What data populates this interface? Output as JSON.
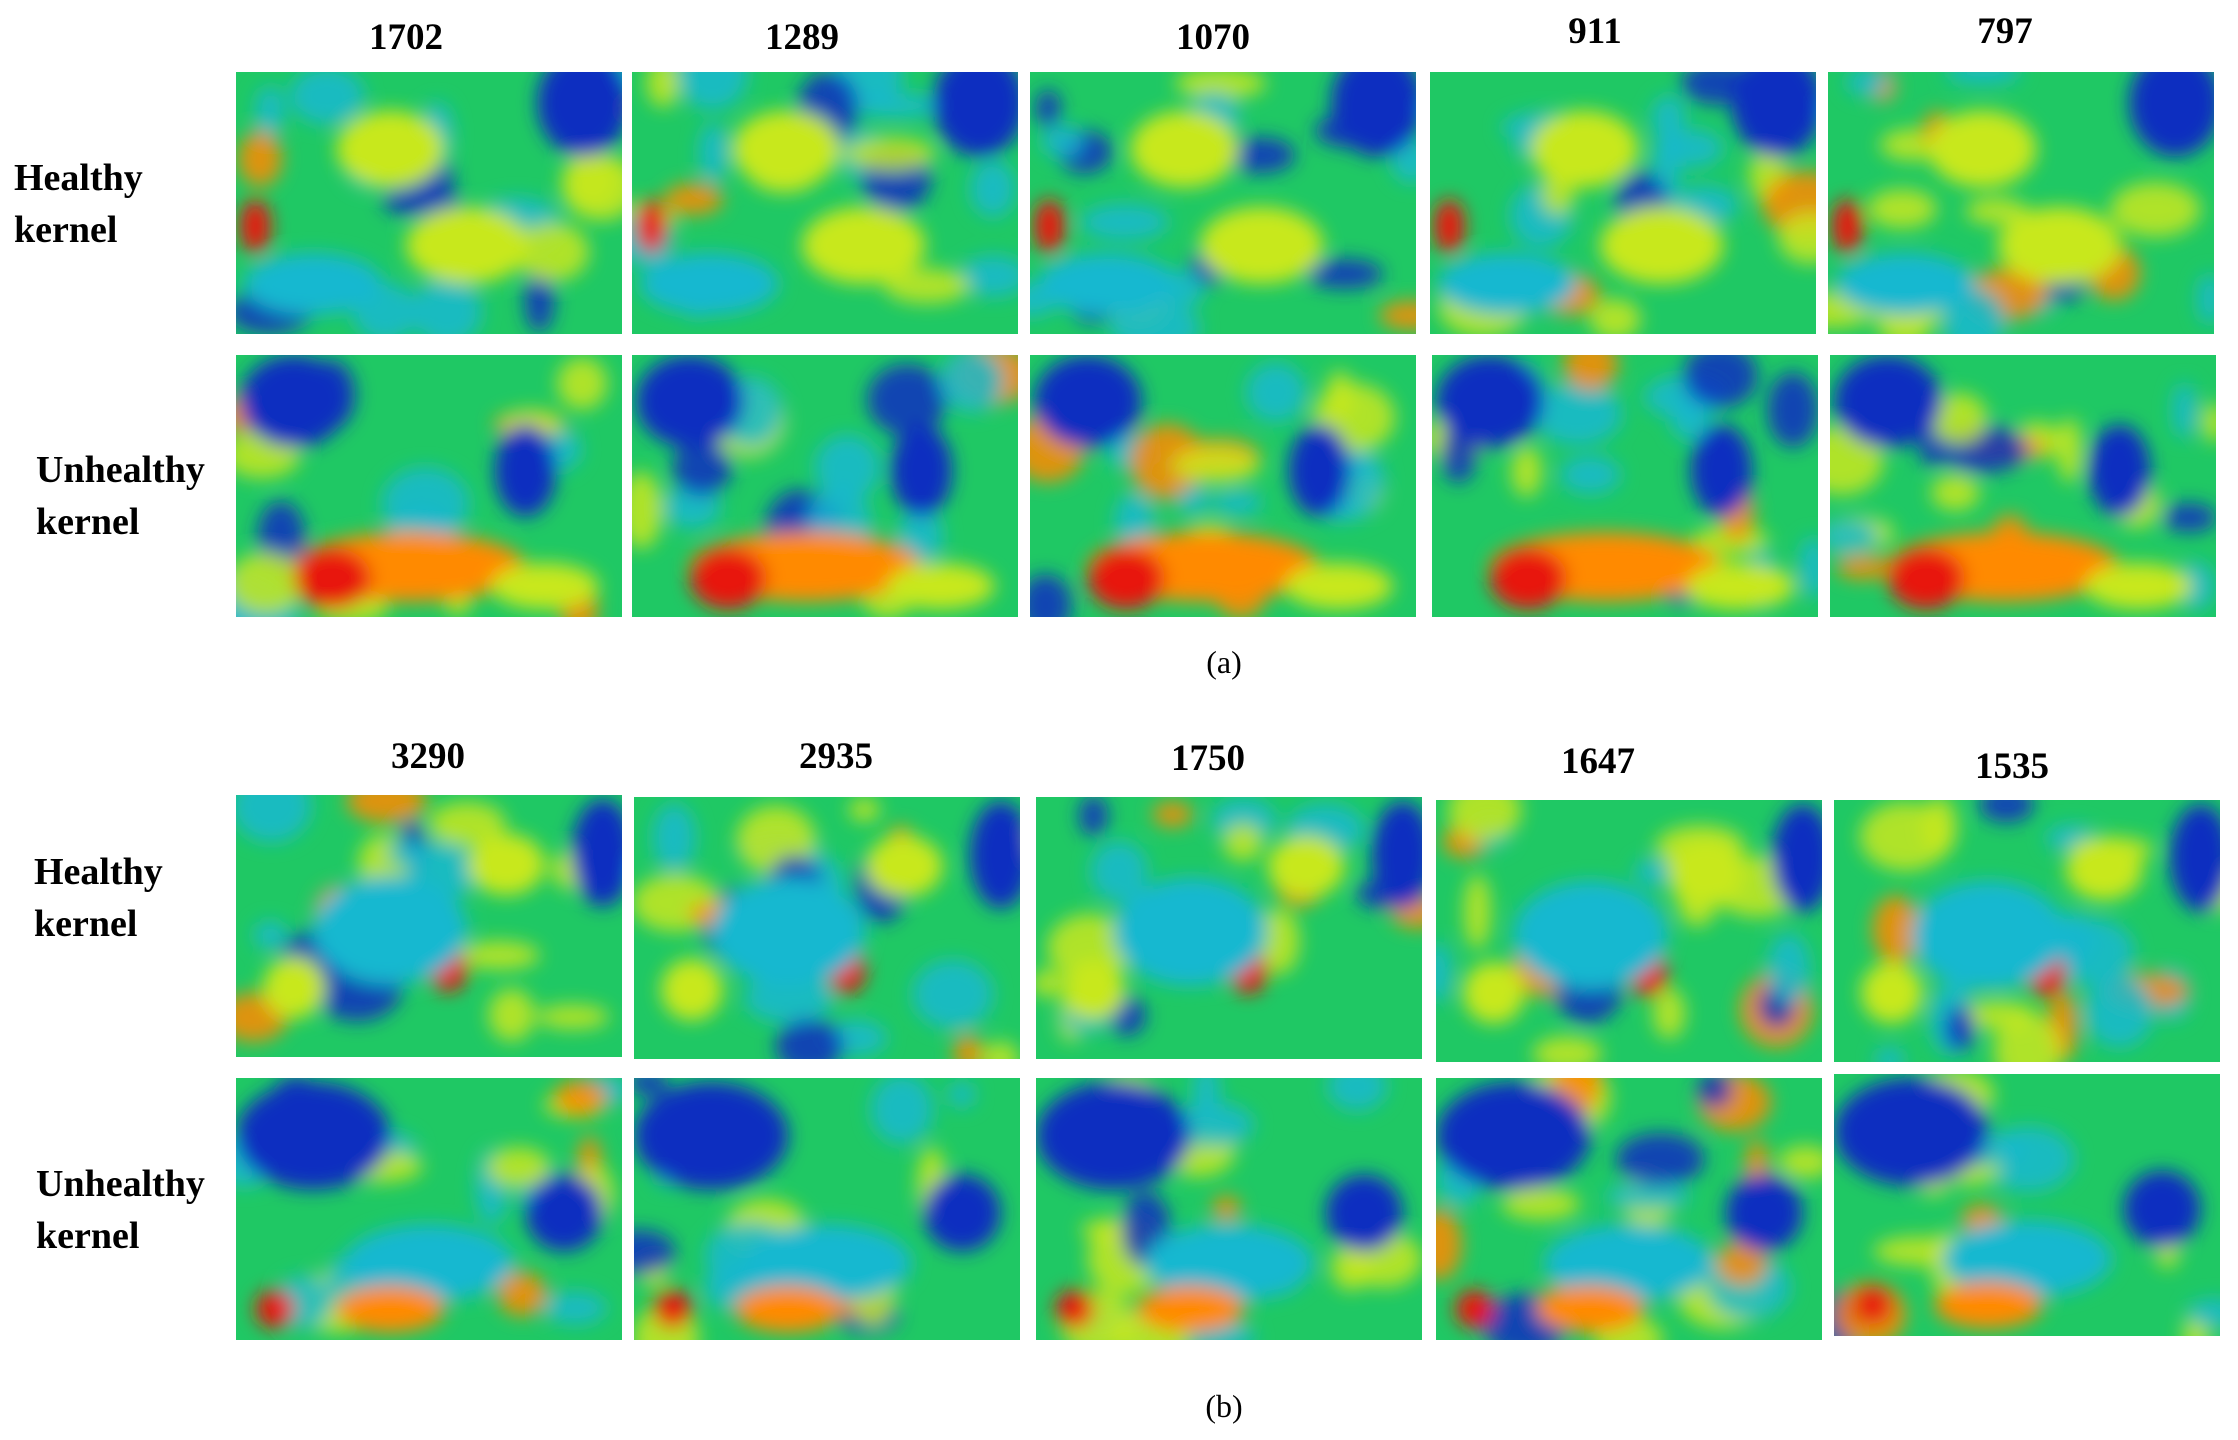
{
  "figure": {
    "panel_a": {
      "caption": "(a)",
      "columns": [
        "1702",
        "1289",
        "1070",
        "911",
        "797"
      ],
      "rows": [
        {
          "line1": "Healthy",
          "line2": "kernel"
        },
        {
          "line1": "Unhealthy",
          "line2": "kernel"
        }
      ]
    },
    "panel_b": {
      "caption": "(b)",
      "columns": [
        "3290",
        "2935",
        "1750",
        "1647",
        "1535"
      ],
      "rows": [
        {
          "line1": "Healthy",
          "line2": "kernel"
        },
        {
          "line1": "Unhealthy",
          "line2": "kernel"
        }
      ]
    }
  },
  "colormap": {
    "low": "#0a2fc0",
    "mid_low": "#19b8d0",
    "mid": "#1fc864",
    "mid_high": "#c8e81e",
    "high": "#ff8a00",
    "peak": "#e8140a"
  }
}
